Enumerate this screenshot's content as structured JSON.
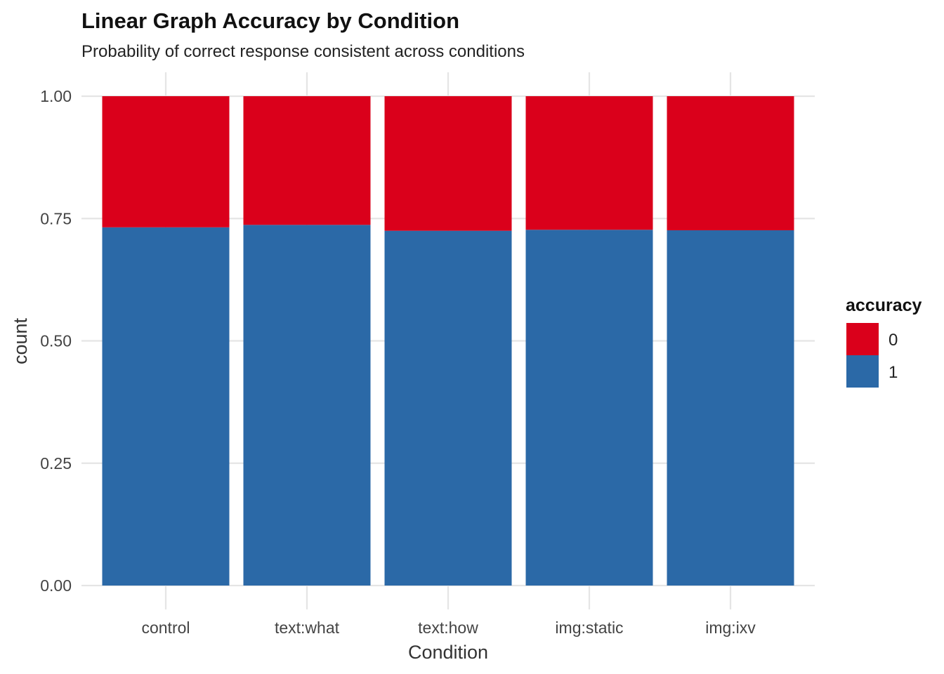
{
  "chart_data": {
    "type": "bar",
    "stacked": true,
    "title": "Linear Graph Accuracy by Condition",
    "subtitle": "Probability of correct response consistent across conditions",
    "xlabel": "Condition",
    "ylabel": "count",
    "ylim": [
      0,
      1
    ],
    "yticks": [
      "0.00",
      "0.25",
      "0.50",
      "0.75",
      "1.00"
    ],
    "categories": [
      "control",
      "text:what",
      "text:how",
      "img:static",
      "img:ixv"
    ],
    "series": [
      {
        "name": "1",
        "color": "#2b69a7",
        "values": [
          0.732,
          0.737,
          0.725,
          0.727,
          0.726
        ]
      },
      {
        "name": "0",
        "color": "#da001b",
        "values": [
          0.268,
          0.263,
          0.275,
          0.273,
          0.274
        ]
      }
    ],
    "legend": {
      "title": "accuracy",
      "placement": "right",
      "entries": [
        {
          "label": "0",
          "color": "#da001b"
        },
        {
          "label": "1",
          "color": "#2b69a7"
        }
      ]
    },
    "grid": true
  }
}
